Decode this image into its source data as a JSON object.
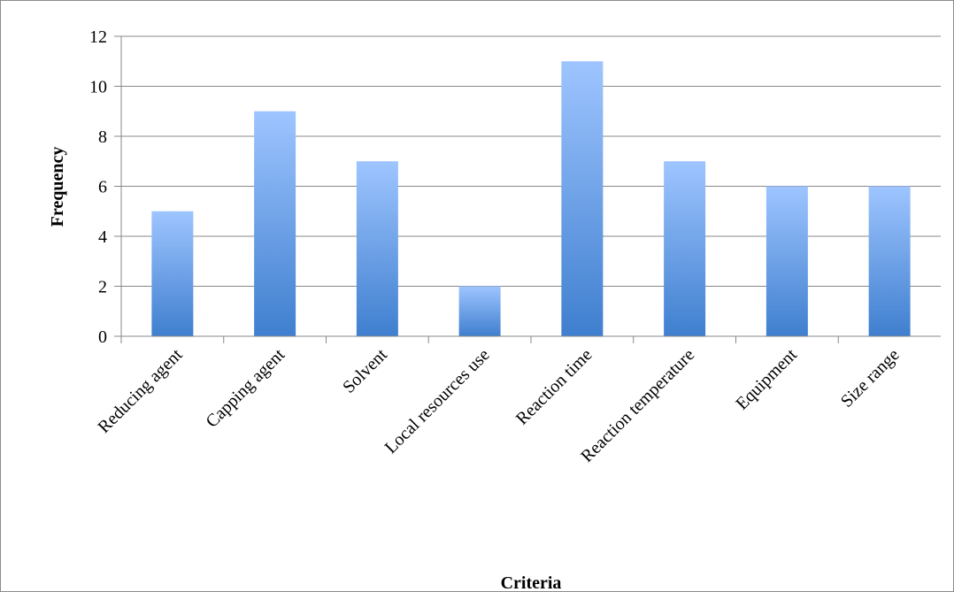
{
  "chart_data": {
    "type": "bar",
    "title": "",
    "xlabel": "Criteria",
    "ylabel": "Frequency",
    "categories": [
      "Reducing agent",
      "Capping agent",
      "Solvent",
      "Local resources use",
      "Reaction time",
      "Reaction temperature",
      "Equipment",
      "Size range"
    ],
    "values": [
      5,
      9,
      7,
      2,
      11,
      7,
      6,
      6
    ],
    "ylim": [
      0,
      12
    ],
    "yticks": [
      "0",
      "2",
      "4",
      "6",
      "8",
      "10",
      "12"
    ],
    "grid": true,
    "legend": "none",
    "colors": {
      "bar_top": "#9ec5ff",
      "bar_bottom": "#3f7fcf",
      "grid": "#888888",
      "axis": "#888888"
    }
  }
}
